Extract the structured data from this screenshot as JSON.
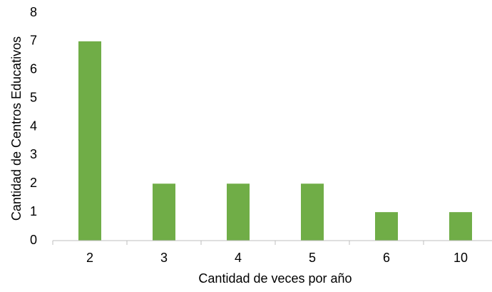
{
  "chart_data": {
    "type": "bar",
    "x_label": "Cantidad de veces por año",
    "y_label": "Cantidad de Centros Educativos",
    "categories": [
      "2",
      "3",
      "4",
      "5",
      "6",
      "10"
    ],
    "values": [
      7,
      2,
      2,
      2,
      1,
      1
    ],
    "color": "#70ad47",
    "ylim": [
      0,
      8
    ],
    "yticks": [
      0,
      1,
      2,
      3,
      4,
      5,
      6,
      7,
      8
    ],
    "grid": false
  }
}
